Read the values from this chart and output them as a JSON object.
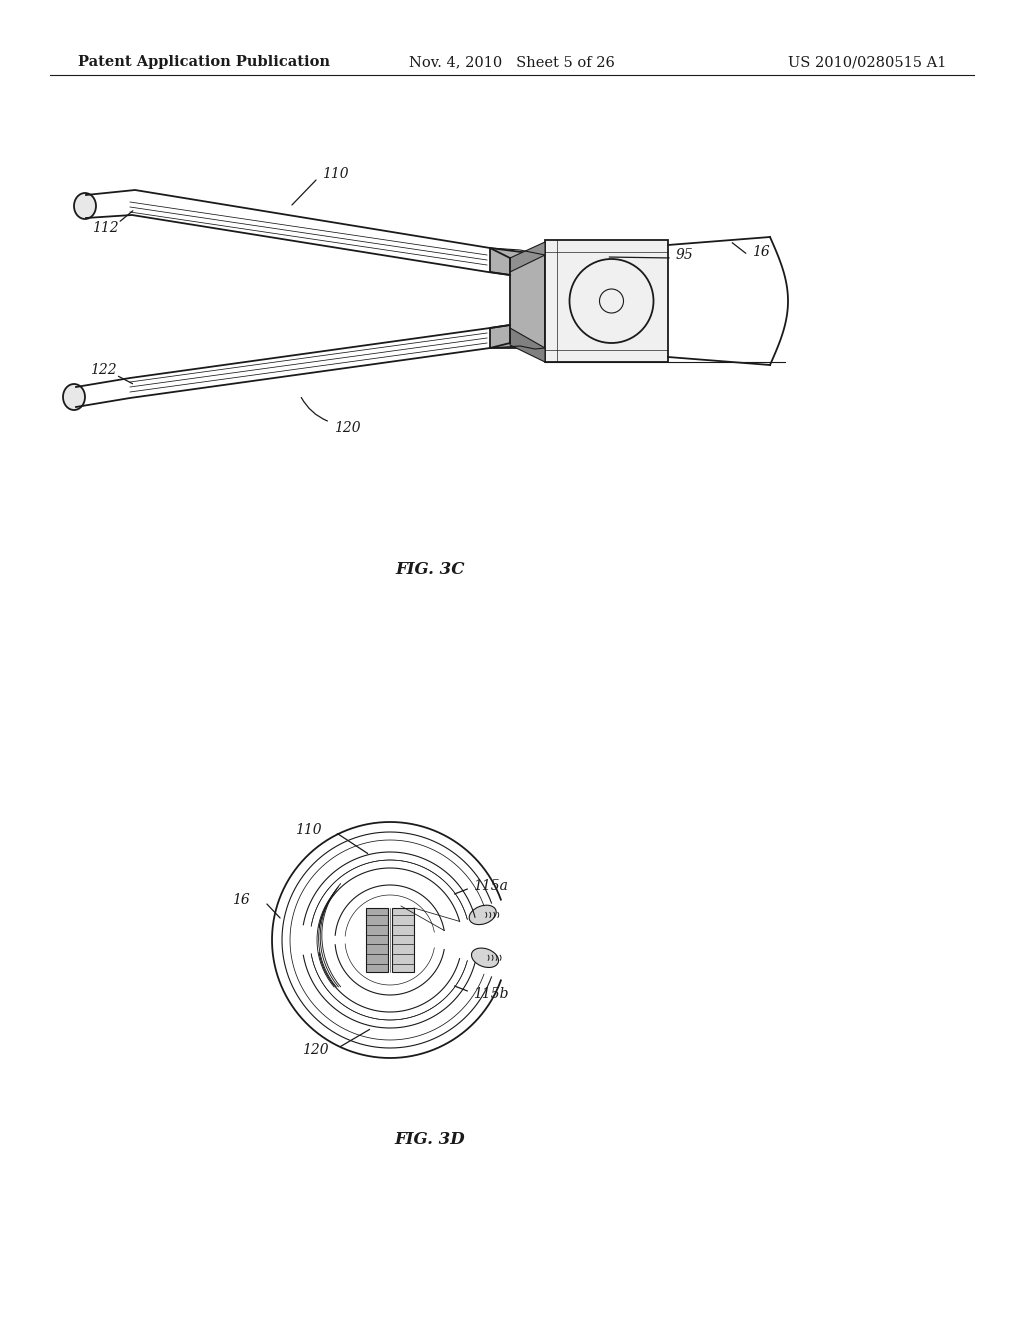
{
  "background_color": "#ffffff",
  "header_left": "Patent Application Publication",
  "header_mid": "Nov. 4, 2010   Sheet 5 of 26",
  "header_right": "US 2010/0280515 A1",
  "fig3c_label": "FIG. 3C",
  "fig3d_label": "FIG. 3D",
  "line_color": "#1a1a1a",
  "text_color": "#1a1a1a",
  "header_fontsize": 10.5,
  "label_fontsize": 10,
  "fig_label_fontsize": 12
}
